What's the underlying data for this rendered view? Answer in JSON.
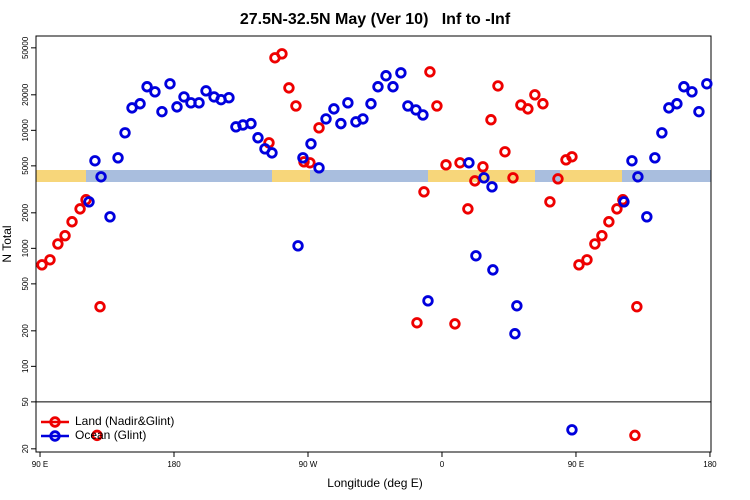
{
  "chart_data": {
    "type": "scatter",
    "title": "27.5N-32.5N May (Ver 10)   Inf to -Inf",
    "xlabel": "Longitude (deg E)",
    "ylabel": "N Total",
    "ylog": true,
    "xlim": [
      87.3,
      540.7
    ],
    "ylim": [
      18.8,
      63000
    ],
    "xticks": [
      {
        "value": 90,
        "label": "90 E"
      },
      180,
      {
        "value": 270,
        "label": "90 W"
      },
      {
        "value": 360,
        "label": "0"
      },
      {
        "value": 450,
        "label": "90 E"
      },
      {
        "value": 540,
        "label": "180"
      }
    ],
    "yticks": [
      20,
      50,
      100,
      200,
      500,
      1000,
      2000,
      5000,
      10000,
      20000,
      50000
    ],
    "hline": 50,
    "legend": "bottom-left",
    "series": [
      {
        "name": "Land (Nadir&Glint)",
        "color": "#ee0000",
        "x": [
          91.3,
          96.7,
          102.0,
          106.8,
          111.5,
          116.9,
          120.9,
          130.3,
          128.3,
          243.8,
          247.8,
          252.5,
          257.2,
          261.9,
          267.3,
          271.3,
          277.4,
          343.2,
          347.9,
          351.9,
          356.6,
          362.7,
          368.7,
          372.1,
          377.4,
          382.1,
          387.5,
          392.9,
          397.6,
          402.3,
          407.7,
          413.0,
          417.7,
          422.4,
          427.8,
          432.5,
          437.9,
          443.3,
          447.3,
          452.0,
          457.4,
          462.7,
          467.4,
          472.1,
          477.5,
          481.5,
          490.9,
          489.6
        ],
        "values": [
          725,
          800,
          1090,
          1280,
          1680,
          2160,
          2580,
          320,
          26,
          7840,
          41200,
          44500,
          22900,
          16100,
          5410,
          5310,
          10500,
          234,
          3010,
          31300,
          16100,
          5100,
          229,
          5310,
          2160,
          3730,
          4910,
          12300,
          23800,
          6580,
          3960,
          16400,
          15200,
          20000,
          16800,
          2480,
          3880,
          5620,
          5970,
          725,
          800,
          1090,
          1280,
          1680,
          2160,
          2580,
          320,
          26
        ]
      },
      {
        "name": "Ocean (Glint)",
        "color": "#0000dd",
        "x": [
          122.9,
          126.9,
          131.0,
          137.0,
          142.4,
          147.1,
          151.8,
          157.2,
          161.9,
          167.2,
          171.9,
          177.3,
          182.0,
          186.7,
          191.4,
          196.8,
          201.5,
          206.9,
          211.6,
          216.9,
          221.6,
          226.3,
          231.7,
          236.4,
          241.1,
          245.8,
          263.3,
          266.6,
          272.0,
          277.4,
          282.1,
          287.4,
          292.1,
          296.8,
          302.2,
          306.9,
          312.3,
          317.0,
          322.4,
          327.1,
          332.4,
          337.1,
          342.5,
          347.2,
          350.6,
          378.1,
          382.8,
          388.2,
          393.6,
          394.2,
          409.0,
          410.3,
          447.3,
          482.2,
          487.6,
          491.6,
          497.6,
          503.0,
          507.7,
          512.4,
          517.8,
          522.5,
          527.9,
          532.6,
          537.9
        ],
        "values": [
          2480,
          5520,
          4040,
          1850,
          5850,
          9530,
          15500,
          16800,
          23400,
          21200,
          14400,
          24800,
          15800,
          19200,
          17100,
          17100,
          21600,
          19200,
          18200,
          18900,
          10700,
          11100,
          11400,
          8650,
          6970,
          6440,
          1050,
          5850,
          7690,
          4810,
          12500,
          15200,
          11400,
          17100,
          11800,
          12500,
          16800,
          23400,
          29000,
          23400,
          30700,
          16100,
          14900,
          13500,
          359,
          5310,
          865,
          3960,
          3320,
          657,
          189,
          326,
          29,
          2480,
          5520,
          4040,
          1850,
          5850,
          9530,
          15500,
          16800,
          23400,
          21200,
          14400,
          24800
        ]
      }
    ]
  }
}
